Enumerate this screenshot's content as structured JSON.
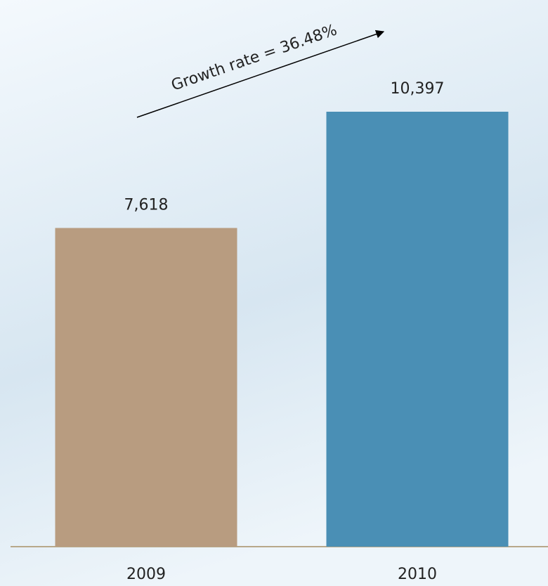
{
  "chart_data": {
    "type": "bar",
    "annotation": "Growth rate = 36.48%",
    "categories": [
      "2009",
      "2010"
    ],
    "values": [
      7618,
      10397
    ],
    "value_labels": [
      "7,618",
      "10,397"
    ],
    "colors": [
      "#b89c80",
      "#4a8fb5"
    ]
  }
}
